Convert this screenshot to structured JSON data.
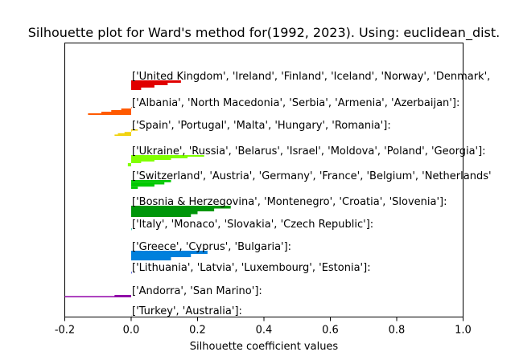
{
  "chart_data": {
    "type": "bar",
    "orientation": "horizontal",
    "title": "Silhouette plot for Ward's method for(1992, 2023). Using: euclidean_dist.",
    "xlabel": "Silhouette coefficient values",
    "ylabel": "",
    "xlim": [
      -0.2,
      1.0
    ],
    "xticks": [
      "-0.2",
      "0.0",
      "0.2",
      "0.4",
      "0.6",
      "0.8",
      "1.0"
    ],
    "grid": false,
    "clusters": [
      {
        "label": "['United Kingdom', 'Ireland', 'Finland', 'Iceland', 'Norway', 'Denmark',",
        "color": "#e00000",
        "values": [
          0.15,
          0.11,
          0.07,
          0.03
        ]
      },
      {
        "label": "['Albania', 'North Macedonia', 'Serbia', 'Armenia', 'Azerbaijan']:",
        "color": "#ff5a00",
        "values": [
          0.0,
          -0.03,
          -0.06,
          -0.09,
          -0.13
        ]
      },
      {
        "label": "['Spain', 'Portugal', 'Malta', 'Hungary', 'Romania']:",
        "color": "#f0d000",
        "values": [
          0.02,
          0.0,
          -0.02,
          -0.04,
          -0.05
        ]
      },
      {
        "label": "['Ukraine', 'Russia', 'Belarus', 'Israel', 'Moldova', 'Poland', 'Georgia']:",
        "color": "#80ff00",
        "values": [
          0.22,
          0.17,
          0.12,
          0.07,
          0.03,
          -0.01,
          -0.01
        ]
      },
      {
        "label": "['Switzerland', 'Austria', 'Germany', 'France', 'Belgium', 'Netherlands'",
        "color": "#00c800",
        "values": [
          0.12,
          0.1,
          0.07,
          0.02
        ]
      },
      {
        "label": "['Bosnia & Herzegovina', 'Montenegro', 'Croatia', 'Slovenia']:",
        "color": "#00960a",
        "values": [
          0.3,
          0.25,
          0.2,
          0.18
        ]
      },
      {
        "label": "['Italy', 'Monaco', 'Slovakia', 'Czech Republic']:",
        "color": "#00b4a0",
        "values": [
          0.0,
          0.0,
          0.0,
          0.0
        ]
      },
      {
        "label": "['Greece', 'Cyprus', 'Bulgaria']:",
        "color": "#0080dc",
        "values": [
          0.23,
          0.18,
          0.12
        ]
      },
      {
        "label": "['Lithuania', 'Latvia', 'Luxembourg', 'Estonia']:",
        "color": "#2030dc",
        "values": [
          0.0,
          0.0,
          0.0,
          0.0
        ]
      },
      {
        "label": "['Andorra', 'San Marino']:",
        "color": "#9000a8",
        "values": [
          -0.05,
          -0.2
        ]
      },
      {
        "label": "['Turkey', 'Australia']:",
        "color": "#d0d0d0",
        "values": [
          0.0,
          0.0
        ]
      }
    ]
  }
}
